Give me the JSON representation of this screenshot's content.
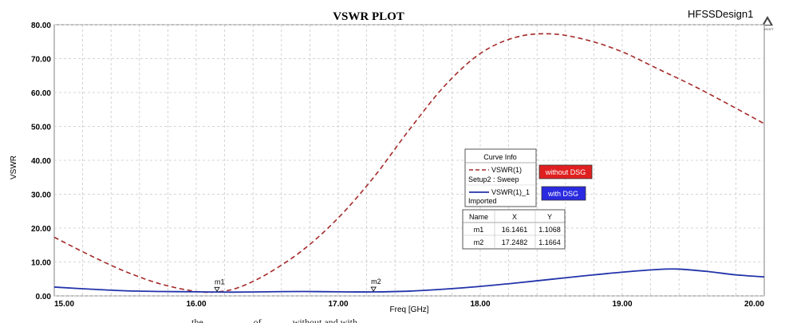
{
  "header": {
    "title": "VSWR PLOT",
    "design_name": "HFSSDesign1",
    "logo_text": "ANSOFT"
  },
  "chart_data": {
    "type": "line",
    "title": "VSWR PLOT",
    "xlabel": "Freq [GHz]",
    "ylabel": "VSWR",
    "xlim": [
      15.0,
      20.0
    ],
    "ylim": [
      0.0,
      80.0
    ],
    "x_ticks": [
      15.0,
      16.0,
      17.0,
      18.0,
      19.0,
      20.0
    ],
    "x_tick_labels": [
      "15.00",
      "16.00",
      "17.00",
      "18.00",
      "19.00",
      "20.00"
    ],
    "y_ticks": [
      0,
      10,
      20,
      30,
      40,
      50,
      60,
      70,
      80
    ],
    "y_tick_labels": [
      "0.00",
      "10.00",
      "20.00",
      "30.00",
      "40.00",
      "50.00",
      "60.00",
      "70.00",
      "80.00"
    ],
    "grid": true,
    "series": [
      {
        "name": "VSWR(1)",
        "source": "Setup2 : Sweep",
        "tag": "without DSG",
        "color": "#a52a2a",
        "dash": true,
        "x": [
          15.0,
          15.25,
          15.5,
          15.75,
          16.0,
          16.15,
          16.3,
          16.5,
          16.75,
          17.0,
          17.25,
          17.5,
          17.75,
          18.0,
          18.25,
          18.5,
          18.75,
          19.0,
          19.25,
          19.5,
          19.75,
          20.0
        ],
        "y": [
          17.3,
          12.0,
          7.2,
          3.5,
          1.3,
          1.2,
          2.5,
          6.5,
          13.5,
          23.0,
          35.0,
          49.0,
          62.0,
          71.5,
          76.3,
          77.3,
          75.5,
          72.0,
          67.0,
          62.0,
          56.5,
          50.8
        ]
      },
      {
        "name": "VSWR(1)_1",
        "source": "Imported",
        "tag": "with DSG",
        "color": "#2233aa",
        "dash": false,
        "x": [
          15.0,
          15.25,
          15.5,
          15.75,
          16.0,
          16.25,
          16.5,
          16.75,
          17.0,
          17.25,
          17.5,
          17.75,
          18.0,
          18.25,
          18.5,
          18.75,
          19.0,
          19.25,
          19.4,
          19.6,
          19.8,
          20.0
        ],
        "y": [
          2.6,
          2.0,
          1.5,
          1.3,
          1.2,
          1.1,
          1.2,
          1.3,
          1.2,
          1.17,
          1.4,
          2.0,
          2.8,
          3.8,
          4.9,
          6.0,
          7.0,
          7.8,
          7.9,
          7.2,
          6.2,
          5.6
        ]
      }
    ],
    "markers": [
      {
        "name": "m1",
        "x": 16.1461,
        "y": 1.1068
      },
      {
        "name": "m2",
        "x": 17.2482,
        "y": 1.1664
      }
    ],
    "legend": {
      "title": "Curve Info",
      "placement": "center-right"
    },
    "marker_table": {
      "headers": [
        "Name",
        "X",
        "Y"
      ],
      "rows": [
        [
          "m1",
          "16.1461",
          "1.1068"
        ],
        [
          "m2",
          "17.2482",
          "1.1664"
        ]
      ]
    },
    "tag_colors": {
      "without_dsg": "#e02020",
      "with_dsg": "#2a2ae0"
    }
  },
  "caption": "the ... ... ... ... ... of ... ... ... without and with ..."
}
